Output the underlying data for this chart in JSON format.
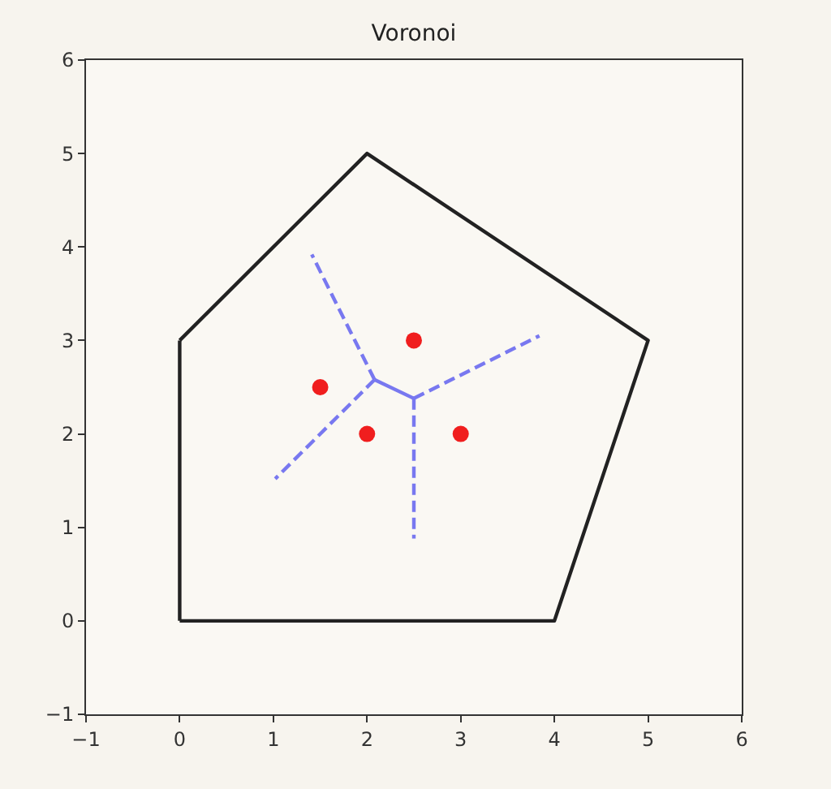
{
  "chart_data": {
    "type": "line",
    "title": "Voronoi",
    "xlim": [
      -1,
      6
    ],
    "ylim": [
      -1,
      6
    ],
    "xticks": [
      {
        "value": -1,
        "label": "−1"
      },
      0,
      1,
      2,
      3,
      4,
      5,
      6
    ],
    "yticks": [
      {
        "value": -1,
        "label": "−1"
      },
      0,
      1,
      2,
      3,
      4,
      5,
      6
    ],
    "series": [
      {
        "x": [
          0,
          4,
          5,
          2,
          0
        ],
        "values": [
          0,
          0,
          3,
          5,
          3
        ],
        "color": "#222222",
        "line_style": "solid",
        "marker": "none"
      },
      {
        "x": [
          0,
          0
        ],
        "values": [
          3,
          0
        ],
        "color": "#222222",
        "line_style": "solid",
        "marker": "none"
      },
      {
        "x": [
          2.08,
          2.5
        ],
        "values": [
          2.58,
          2.38
        ],
        "color": "#7878f0",
        "line_style": "solid",
        "marker": "none"
      },
      {
        "x": [
          2.08,
          1.41
        ],
        "values": [
          2.58,
          3.92
        ],
        "color": "#7878f0",
        "line_style": "dashed",
        "marker": "none"
      },
      {
        "x": [
          2.08,
          1.02
        ],
        "values": [
          2.58,
          1.52
        ],
        "color": "#7878f0",
        "line_style": "dashed",
        "marker": "none"
      },
      {
        "x": [
          2.5,
          2.5
        ],
        "values": [
          2.38,
          0.88
        ],
        "color": "#7878f0",
        "line_style": "dashed",
        "marker": "none"
      },
      {
        "x": [
          2.5,
          3.84
        ],
        "values": [
          2.38,
          3.05
        ],
        "color": "#7878f0",
        "line_style": "dashed",
        "marker": "none"
      },
      {
        "type": "scatter",
        "x": [
          1.5,
          2,
          2.5,
          3
        ],
        "values": [
          2.5,
          2,
          3,
          2
        ],
        "color": "#f01e1e",
        "marker": "circle"
      }
    ]
  }
}
